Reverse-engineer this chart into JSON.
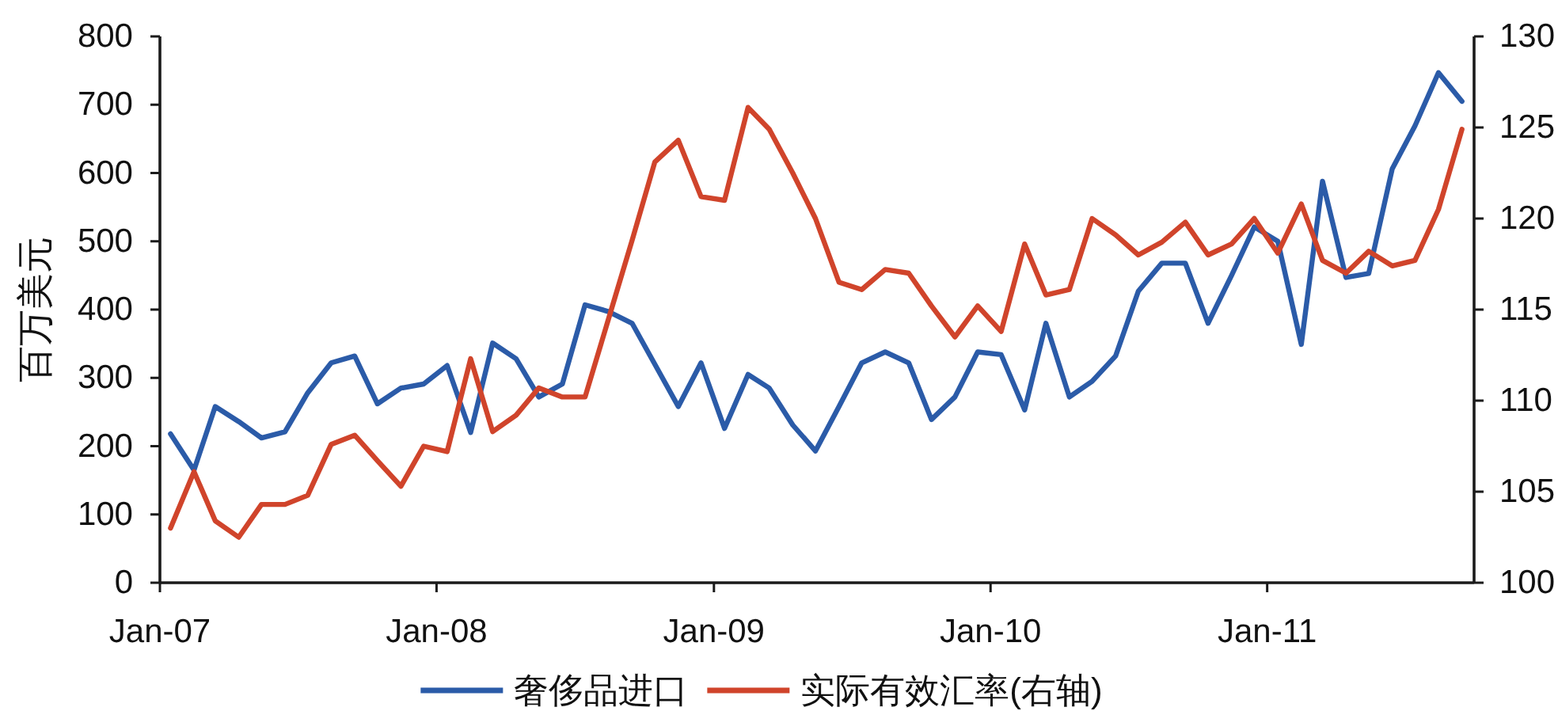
{
  "chart_data": {
    "type": "line",
    "ylabel": "百万美元",
    "x": [
      "2007-01-15",
      "2007-02-15",
      "2007-03-15",
      "2007-04-15",
      "2007-05-15",
      "2007-06-15",
      "2007-07-15",
      "2007-08-15",
      "2007-09-15",
      "2007-10-15",
      "2007-11-15",
      "2007-12-15",
      "2008-01-15",
      "2008-02-15",
      "2008-03-15",
      "2008-04-15",
      "2008-05-15",
      "2008-06-15",
      "2008-07-15",
      "2008-08-15",
      "2008-09-15",
      "2008-10-15",
      "2008-11-15",
      "2008-12-15",
      "2009-01-15",
      "2009-02-15",
      "2009-03-15",
      "2009-04-15",
      "2009-05-15",
      "2009-06-15",
      "2009-07-15",
      "2009-08-15",
      "2009-09-15",
      "2009-10-15",
      "2009-11-15",
      "2009-12-15",
      "2010-01-15",
      "2010-02-15",
      "2010-03-15",
      "2010-04-15",
      "2010-05-15",
      "2010-06-15",
      "2010-07-15",
      "2010-08-15",
      "2010-09-15",
      "2010-10-15",
      "2010-11-15",
      "2010-12-15",
      "2011-01-15",
      "2011-02-15",
      "2011-03-15",
      "2011-04-15",
      "2011-05-15",
      "2011-06-15",
      "2011-07-15",
      "2011-08-15",
      "2011-09-15"
    ],
    "xlim": [
      "2007-01",
      "2011-10"
    ],
    "xticks": [
      {
        "value": "2007-01",
        "label": "Jan-07"
      },
      {
        "value": "2008-01",
        "label": "Jan-08"
      },
      {
        "value": "2009-01",
        "label": "Jan-09"
      },
      {
        "value": "2010-01",
        "label": "Jan-10"
      },
      {
        "value": "2011-01",
        "label": "Jan-11"
      }
    ],
    "ylim": [
      0,
      800
    ],
    "yticks": [
      0,
      100,
      200,
      300,
      400,
      500,
      600,
      700,
      800
    ],
    "y2lim": [
      100,
      130
    ],
    "y2ticks": [
      100,
      105,
      110,
      115,
      120,
      125,
      130
    ],
    "series": [
      {
        "name": "奢侈品进口",
        "color": "#2b5ba8",
        "values": [
          218,
          165,
          258,
          236,
          212,
          221,
          278,
          322,
          332,
          262,
          285,
          291,
          318,
          220,
          351,
          328,
          272,
          291,
          407,
          397,
          380,
          320,
          258,
          322,
          226,
          305,
          285,
          231,
          193,
          258,
          322,
          338,
          322,
          239,
          272,
          338,
          334,
          253,
          380,
          272,
          295,
          332,
          427,
          468,
          468,
          380,
          450,
          521,
          500,
          349,
          588,
          447,
          453,
          606,
          669,
          747,
          705
        ]
      },
      {
        "name": "实际有效汇率(右轴)",
        "color": "#d0442b",
        "axis": "y2",
        "values": [
          103.0,
          106.1,
          103.4,
          102.5,
          104.3,
          104.3,
          104.8,
          107.6,
          108.1,
          106.7,
          105.3,
          107.5,
          107.2,
          112.3,
          108.3,
          109.2,
          110.7,
          110.2,
          110.2,
          114.5,
          118.8,
          123.1,
          124.3,
          121.2,
          121.0,
          126.1,
          124.9,
          122.5,
          120.0,
          116.5,
          116.1,
          117.2,
          117.0,
          115.2,
          113.5,
          115.2,
          113.8,
          118.6,
          115.8,
          116.1,
          120.0,
          119.1,
          118.0,
          118.7,
          119.8,
          118.0,
          118.6,
          120.0,
          118.1,
          120.8,
          117.7,
          117.0,
          118.2,
          117.4,
          117.7,
          120.5,
          124.9
        ]
      }
    ],
    "legend": "bottom"
  }
}
